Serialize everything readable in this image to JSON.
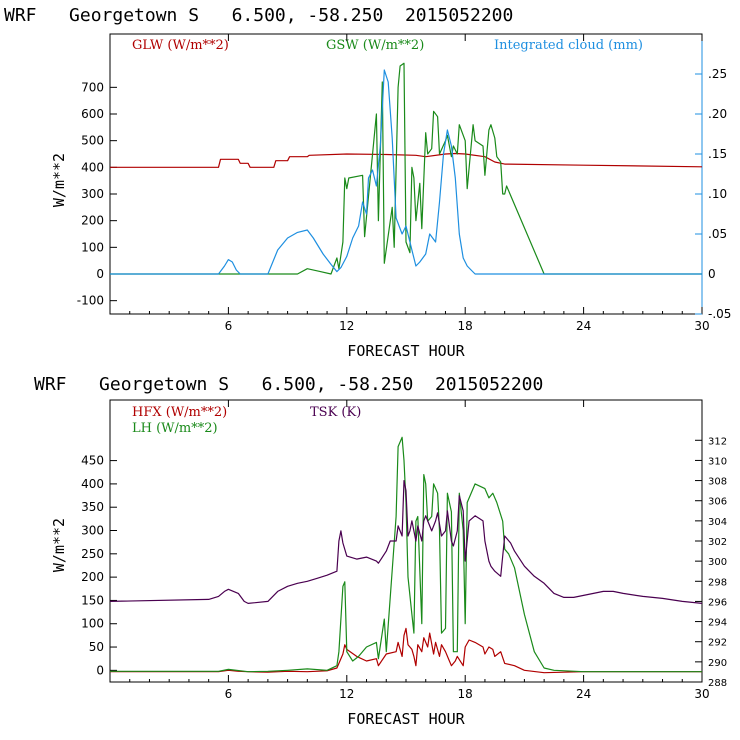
{
  "chart_data": [
    {
      "type": "line",
      "title": "WRF   Georgetown S   6.500, -58.250  2015052200",
      "xlabel": "FORECAST HOUR",
      "ylabel": "W/m**2",
      "xlim": [
        0,
        30
      ],
      "ylim": [
        -150,
        900
      ],
      "y2lim": [
        -0.05,
        0.3
      ],
      "xticks": [
        6,
        12,
        18,
        24,
        30
      ],
      "yticks": [
        -100,
        0,
        100,
        200,
        300,
        400,
        500,
        600,
        700
      ],
      "y2ticks": [
        -0.05,
        0,
        0.05,
        0.1,
        0.15,
        0.2,
        0.25
      ],
      "xtick_labels": [
        "6",
        "12",
        "18",
        "24",
        "30"
      ],
      "ytick_labels": [
        "-100",
        "0",
        "100",
        "200",
        "300",
        "400",
        "500",
        "600",
        "700"
      ],
      "y2tick_labels": [
        "-.05",
        "0",
        ".05",
        ".10",
        ".15",
        ".20",
        ".25"
      ],
      "series": [
        {
          "name": "GLW (W/m**2)",
          "axis": "left",
          "color": "#b00000",
          "x": [
            0,
            5.5,
            5.6,
            6.5,
            6.6,
            7.0,
            7.1,
            8.3,
            8.4,
            9.0,
            9.1,
            10.0,
            10.1,
            12,
            14,
            15.5,
            16,
            17,
            17.5,
            18,
            19,
            19.5,
            20,
            24,
            30
          ],
          "y": [
            400,
            400,
            430,
            430,
            415,
            415,
            400,
            400,
            425,
            425,
            440,
            440,
            445,
            450,
            448,
            445,
            440,
            450,
            452,
            450,
            440,
            420,
            412,
            408,
            402
          ]
        },
        {
          "name": "GSW (W/m**2)",
          "axis": "left",
          "color": "#1a8a1a",
          "x": [
            0,
            9.5,
            10.0,
            10.6,
            11.2,
            11.5,
            11.6,
            11.8,
            11.9,
            12.0,
            12.1,
            12.8,
            12.9,
            13.5,
            13.6,
            13.8,
            13.9,
            14.3,
            14.4,
            14.6,
            14.7,
            14.9,
            15.0,
            15.2,
            15.3,
            15.4,
            15.5,
            15.7,
            15.8,
            16.0,
            16.1,
            16.3,
            16.4,
            16.6,
            16.7,
            17.0,
            17.1,
            17.3,
            17.4,
            17.6,
            17.7,
            18.0,
            18.1,
            18.4,
            18.5,
            18.9,
            19.0,
            19.2,
            19.3,
            19.5,
            19.6,
            19.8,
            19.9,
            20.0,
            20.1,
            22.0,
            30
          ],
          "y": [
            0,
            0,
            20,
            10,
            0,
            60,
            20,
            120,
            360,
            320,
            360,
            370,
            140,
            600,
            200,
            720,
            40,
            250,
            100,
            700,
            780,
            790,
            120,
            80,
            400,
            360,
            200,
            340,
            170,
            530,
            450,
            470,
            610,
            590,
            450,
            500,
            520,
            440,
            480,
            450,
            560,
            500,
            320,
            560,
            500,
            480,
            370,
            540,
            560,
            510,
            440,
            420,
            300,
            300,
            330,
            0,
            0
          ]
        },
        {
          "name": "Integrated cloud (mm)",
          "axis": "right",
          "color": "#1e8fe0",
          "x": [
            0,
            5.5,
            5.8,
            6.0,
            6.2,
            6.4,
            6.6,
            8.0,
            8.5,
            9.0,
            9.5,
            10.0,
            10.3,
            10.8,
            11.2,
            11.5,
            11.7,
            12.0,
            12.3,
            12.6,
            12.8,
            13.0,
            13.1,
            13.3,
            13.5,
            13.7,
            13.9,
            14.1,
            14.3,
            14.5,
            14.8,
            15.0,
            15.3,
            15.5,
            15.7,
            16.0,
            16.2,
            16.5,
            16.7,
            16.9,
            17.1,
            17.3,
            17.5,
            17.7,
            17.9,
            18.1,
            18.3,
            18.5,
            19.0,
            30
          ],
          "y": [
            0,
            0,
            0.01,
            0.018,
            0.015,
            0.005,
            0,
            0,
            0.03,
            0.045,
            0.052,
            0.055,
            0.045,
            0.025,
            0.012,
            0.003,
            0.008,
            0.022,
            0.045,
            0.06,
            0.09,
            0.075,
            0.12,
            0.13,
            0.11,
            0.16,
            0.255,
            0.24,
            0.17,
            0.07,
            0.05,
            0.06,
            0.03,
            0.01,
            0.015,
            0.025,
            0.05,
            0.04,
            0.09,
            0.15,
            0.18,
            0.16,
            0.12,
            0.05,
            0.02,
            0.01,
            0.005,
            0,
            0,
            0
          ]
        }
      ]
    },
    {
      "type": "line",
      "title": "WRF   Georgetown S   6.500, -58.250  2015052200",
      "xlabel": "FORECAST HOUR",
      "ylabel": "W/m**2",
      "xlim": [
        0,
        30
      ],
      "ylim": [
        -25,
        580
      ],
      "y2lim": [
        288,
        316
      ],
      "xticks": [
        6,
        12,
        18,
        24,
        30
      ],
      "yticks": [
        0,
        50,
        100,
        150,
        200,
        250,
        300,
        350,
        400,
        450
      ],
      "y2ticks": [
        288,
        290,
        292,
        294,
        296,
        298,
        300,
        302,
        304,
        306,
        308,
        310,
        312
      ],
      "xtick_labels": [
        "6",
        "12",
        "18",
        "24",
        "30"
      ],
      "ytick_labels": [
        "0",
        "50",
        "100",
        "150",
        "200",
        "250",
        "300",
        "350",
        "400",
        "450"
      ],
      "y2tick_labels": [
        "288",
        "290",
        "292",
        "294",
        "296",
        "298",
        "300",
        "302",
        "304",
        "306",
        "308",
        "310",
        "312"
      ],
      "series": [
        {
          "name": "HFX (W/m**2)",
          "axis": "left",
          "color": "#b00000",
          "x": [
            0,
            5.5,
            6.0,
            6.5,
            7.0,
            8.0,
            9.0,
            10.0,
            11.0,
            11.5,
            11.6,
            11.8,
            11.9,
            12.0,
            12.5,
            13.0,
            13.5,
            13.6,
            14.0,
            14.5,
            14.6,
            14.8,
            14.9,
            15.0,
            15.1,
            15.3,
            15.4,
            15.5,
            15.6,
            15.8,
            15.9,
            16.1,
            16.2,
            16.4,
            16.5,
            16.7,
            16.8,
            17.0,
            17.2,
            17.3,
            17.5,
            17.6,
            17.9,
            18.0,
            18.2,
            18.5,
            18.9,
            19.0,
            19.2,
            19.4,
            19.5,
            19.8,
            20.0,
            20.5,
            21.0,
            22.0,
            24.0,
            30
          ],
          "y": [
            -3,
            -3,
            0,
            -2,
            -3,
            -4,
            -2,
            -3,
            -1,
            5,
            15,
            35,
            55,
            45,
            30,
            20,
            25,
            10,
            35,
            40,
            60,
            30,
            75,
            90,
            55,
            45,
            30,
            10,
            55,
            40,
            70,
            50,
            80,
            35,
            60,
            30,
            55,
            40,
            20,
            10,
            20,
            30,
            10,
            50,
            65,
            60,
            50,
            35,
            50,
            45,
            30,
            40,
            15,
            10,
            0,
            -5,
            -3,
            -3
          ]
        },
        {
          "name": "LH (W/m**2)",
          "axis": "left",
          "color": "#1a8a1a",
          "x": [
            0,
            5.5,
            6.0,
            7.0,
            8.0,
            9.0,
            10.0,
            11.0,
            11.5,
            11.6,
            11.8,
            11.9,
            12.0,
            12.3,
            12.6,
            13.0,
            13.5,
            13.6,
            13.9,
            14.0,
            14.5,
            14.6,
            14.8,
            14.9,
            15.0,
            15.1,
            15.3,
            15.4,
            15.5,
            15.6,
            15.8,
            15.9,
            16.0,
            16.1,
            16.3,
            16.4,
            16.6,
            16.7,
            16.8,
            17.0,
            17.1,
            17.3,
            17.4,
            17.6,
            17.7,
            17.9,
            18.0,
            18.1,
            18.5,
            19.0,
            19.2,
            19.4,
            19.6,
            19.9,
            20.0,
            20.2,
            20.5,
            21.0,
            21.5,
            22.0,
            22.5,
            24.0,
            30
          ],
          "y": [
            -2,
            -2,
            2,
            -3,
            -2,
            0,
            3,
            0,
            10,
            40,
            180,
            190,
            40,
            20,
            30,
            50,
            60,
            25,
            110,
            40,
            330,
            480,
            500,
            450,
            360,
            200,
            120,
            80,
            320,
            330,
            100,
            420,
            400,
            320,
            330,
            400,
            380,
            300,
            80,
            90,
            380,
            340,
            40,
            40,
            380,
            300,
            100,
            360,
            400,
            390,
            370,
            380,
            360,
            320,
            260,
            250,
            220,
            120,
            40,
            5,
            0,
            -3,
            -3
          ]
        },
        {
          "name": "TSK (K)",
          "axis": "right",
          "color": "#4a0050",
          "x": [
            0,
            5.0,
            5.5,
            5.8,
            6.0,
            6.5,
            6.8,
            7.0,
            8.0,
            8.5,
            9.0,
            9.5,
            10.0,
            10.5,
            11.0,
            11.5,
            11.6,
            11.7,
            11.8,
            12.0,
            12.5,
            13.0,
            13.5,
            13.6,
            14.0,
            14.2,
            14.5,
            14.6,
            14.8,
            14.9,
            15.0,
            15.1,
            15.2,
            15.3,
            15.5,
            15.6,
            15.8,
            15.9,
            16.0,
            16.2,
            16.3,
            16.5,
            16.6,
            16.8,
            17.0,
            17.1,
            17.3,
            17.4,
            17.6,
            17.7,
            17.9,
            18.0,
            18.2,
            18.5,
            18.9,
            19.0,
            19.2,
            19.3,
            19.5,
            19.8,
            20.0,
            20.3,
            20.5,
            21.0,
            21.5,
            22.0,
            22.5,
            23.0,
            23.5,
            24.0,
            24.5,
            25.0,
            25.5,
            26.0,
            27.0,
            28.0,
            29.0,
            30
          ],
          "y": [
            296.0,
            296.2,
            296.5,
            297.0,
            297.2,
            296.8,
            296.0,
            295.8,
            296.0,
            297.0,
            297.5,
            297.8,
            298.0,
            298.3,
            298.6,
            299.0,
            302.0,
            303.0,
            301.8,
            300.5,
            300.2,
            300.4,
            300.0,
            299.8,
            301.0,
            302.0,
            302.0,
            303.5,
            302.5,
            308.0,
            307.0,
            302.5,
            303.0,
            304.0,
            302.0,
            303.5,
            302.0,
            304.0,
            304.5,
            303.5,
            303.0,
            304.0,
            304.8,
            302.5,
            303.0,
            305.0,
            302.0,
            301.5,
            303.0,
            306.5,
            305.0,
            300.0,
            304.0,
            304.5,
            304.0,
            302.0,
            300.0,
            299.5,
            299.0,
            298.5,
            302.5,
            301.8,
            301.0,
            299.5,
            298.5,
            297.8,
            296.8,
            296.4,
            296.4,
            296.6,
            296.8,
            297.0,
            297.0,
            296.8,
            296.5,
            296.3,
            296.0,
            295.8
          ]
        }
      ]
    }
  ]
}
